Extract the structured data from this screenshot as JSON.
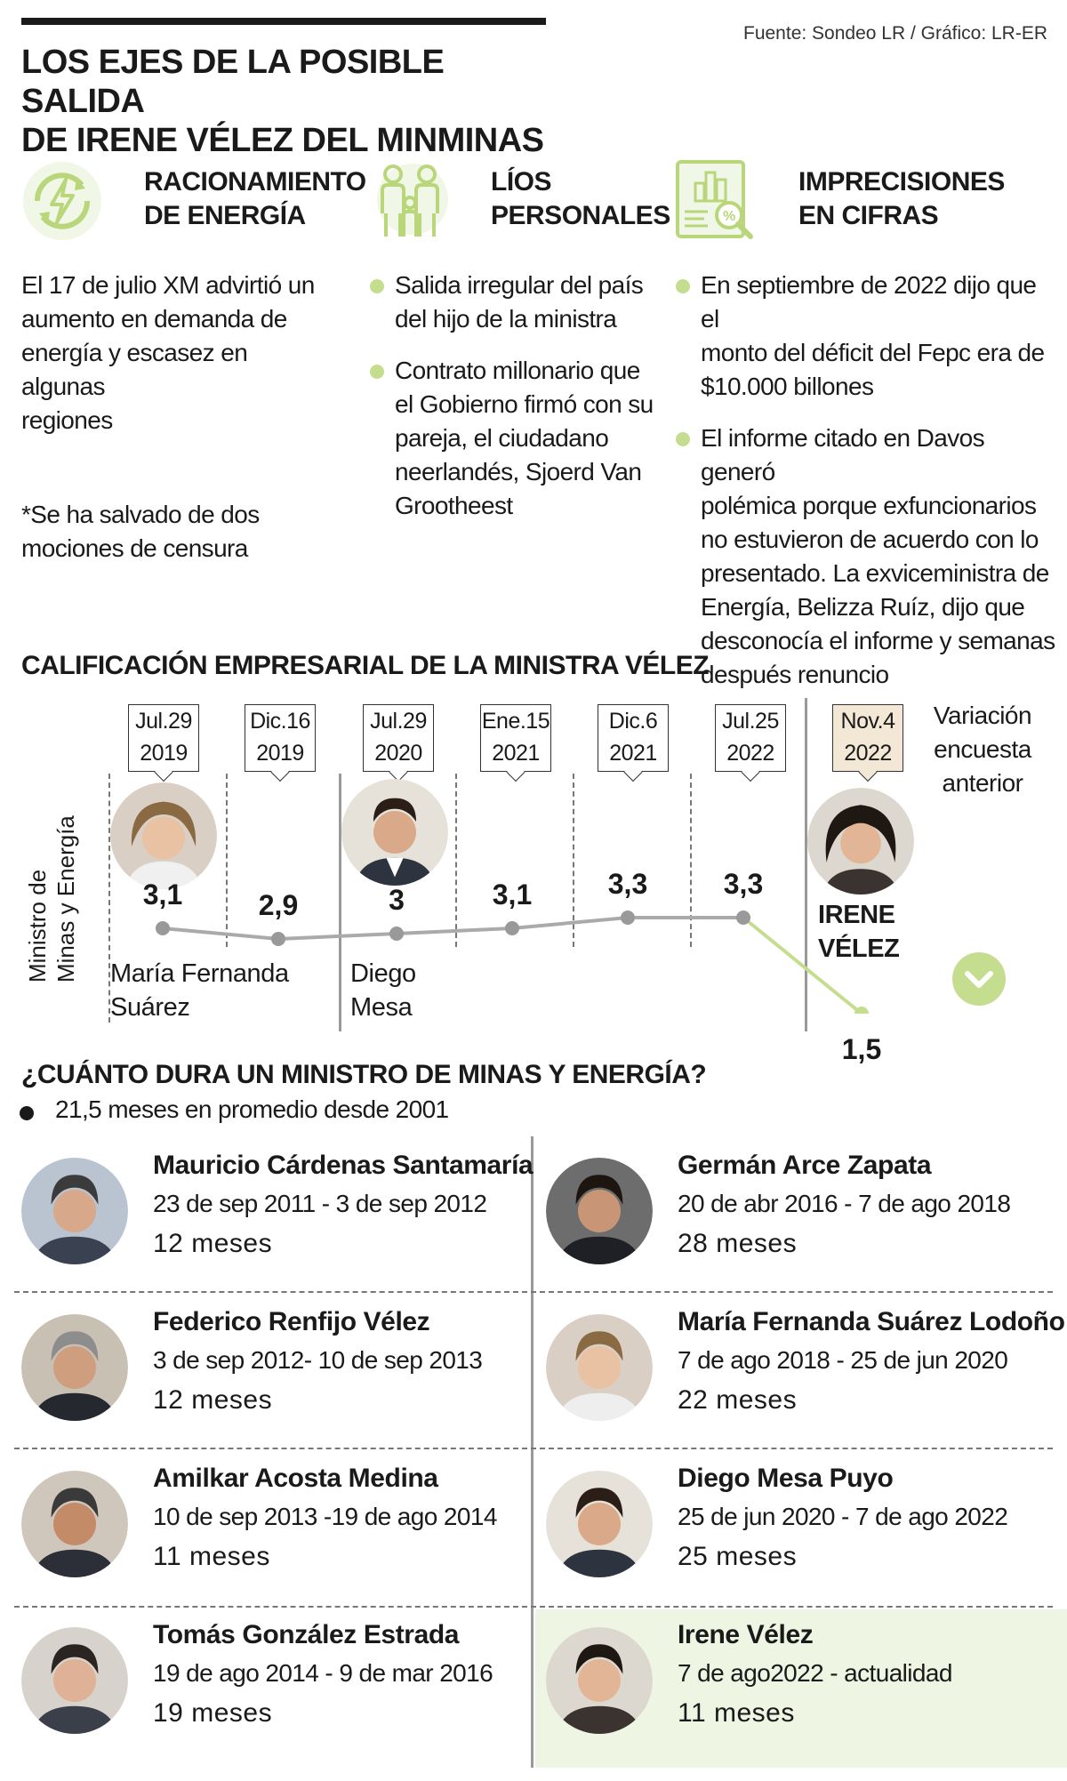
{
  "header": {
    "title_line1": "LOS EJES DE LA POSIBLE SALIDA",
    "title_line2": "DE IRENE VÉLEZ DEL MINMINAS",
    "source": "Fuente: Sondeo LR / Gráfico: LR-ER"
  },
  "columns": {
    "col1": {
      "icon": "energy-lightning-cycle-icon",
      "title_line1": "RACIONAMIENTO",
      "title_line2": "DE ENERGÍA",
      "text_lines": [
        "El 17 de julio XM advirtió un",
        "aumento en demanda de",
        "energía y escasez en algunas",
        "regiones"
      ],
      "note_lines": [
        "*Se ha salvado de dos",
        "mociones de censura"
      ]
    },
    "col2": {
      "icon": "family-icon",
      "title_line1": "LÍOS",
      "title_line2": "PERSONALES",
      "bullet1": [
        "Salida irregular del país",
        "del hijo de la ministra"
      ],
      "bullet2": [
        "Contrato millonario que",
        "el Gobierno firmó con su",
        "pareja, el ciudadano",
        "neerlandés, Sjoerd Van",
        "Grootheest"
      ]
    },
    "col3": {
      "icon": "report-magnifier-icon",
      "title_line1": "IMPRECISIONES",
      "title_line2": "EN CIFRAS",
      "bullet1": [
        "En septiembre de 2022 dijo que el",
        "monto del déficit del Fepc era de",
        "$10.000 billones"
      ],
      "bullet2": [
        "El informe citado en Davos generó",
        "polémica porque exfuncionarios",
        "no estuvieron de acuerdo con lo",
        "presentado. La exviceministra de",
        "Energía, Belizza Ruíz, dijo que",
        "desconocía el informe y semanas",
        "después renuncio"
      ]
    }
  },
  "rating": {
    "title": "CALIFICACIÓN EMPRESARIAL DE LA MINISTRA VÉLEZ",
    "y_label_line1": "Ministro de",
    "y_label_line2": "Minas y Energía",
    "variation_line1": "Variación",
    "variation_line2": "encuesta",
    "variation_line3": "anterior",
    "variation_icon": "chevron-down-circle-icon",
    "dates": [
      {
        "l1": "Jul.29",
        "l2": "2019"
      },
      {
        "l1": "Dic.16",
        "l2": "2019"
      },
      {
        "l1": "Jul.29",
        "l2": "2020"
      },
      {
        "l1": "Ene.15",
        "l2": "2021"
      },
      {
        "l1": "Dic.6",
        "l2": "2021"
      },
      {
        "l1": "Jul.25",
        "l2": "2022"
      },
      {
        "l1": "Nov.4",
        "l2": "2022"
      }
    ],
    "values": [
      "3,1",
      "2,9",
      "3",
      "3,1",
      "3,3",
      "3,3",
      "1,5"
    ],
    "values_num": [
      3.1,
      2.9,
      3.0,
      3.1,
      3.3,
      3.3,
      1.5
    ],
    "ministers": {
      "m1_l1": "María Fernanda",
      "m1_l2": "Suárez",
      "m2_l1": "Diego",
      "m2_l2": "Mesa",
      "m3_l1": "IRENE",
      "m3_l2": "VÉLEZ"
    },
    "colors": {
      "line": "#aaaaaa",
      "drop": "#c5dd8f",
      "point": "#999999"
    }
  },
  "duration": {
    "title": "¿CUÁNTO DURA UN MINISTRO DE MINAS Y ENERGÍA?",
    "average": "21,5 meses en promedio desde 2001",
    "ministers": [
      {
        "name": "Mauricio Cárdenas Santamaría",
        "dates": "23 de sep 2011 - 3 de sep 2012",
        "duration": "12 meses"
      },
      {
        "name": "Germán Arce Zapata",
        "dates": "20 de abr 2016 - 7 de ago 2018",
        "duration": "28 meses"
      },
      {
        "name": "Federico Renfijo Vélez",
        "dates": "3 de sep 2012- 10 de sep 2013",
        "duration": "12 meses"
      },
      {
        "name": "María Fernanda Suárez Lodoño",
        "dates": "7 de ago 2018 - 25 de jun 2020",
        "duration": "22 meses"
      },
      {
        "name": "Amilkar Acosta Medina",
        "dates": "10 de sep 2013 -19 de ago 2014",
        "duration": "11 meses"
      },
      {
        "name": "Diego Mesa Puyo",
        "dates": "25 de jun 2020 - 7 de ago 2022",
        "duration": "25 meses"
      },
      {
        "name": "Tomás González Estrada",
        "dates": "19 de ago 2014 - 9 de mar 2016",
        "duration": "19 meses"
      },
      {
        "name": "Irene Vélez",
        "dates": "7 de ago2022 - actualidad",
        "duration": "11 meses"
      }
    ],
    "highlight_bg": "#eef5e2"
  }
}
